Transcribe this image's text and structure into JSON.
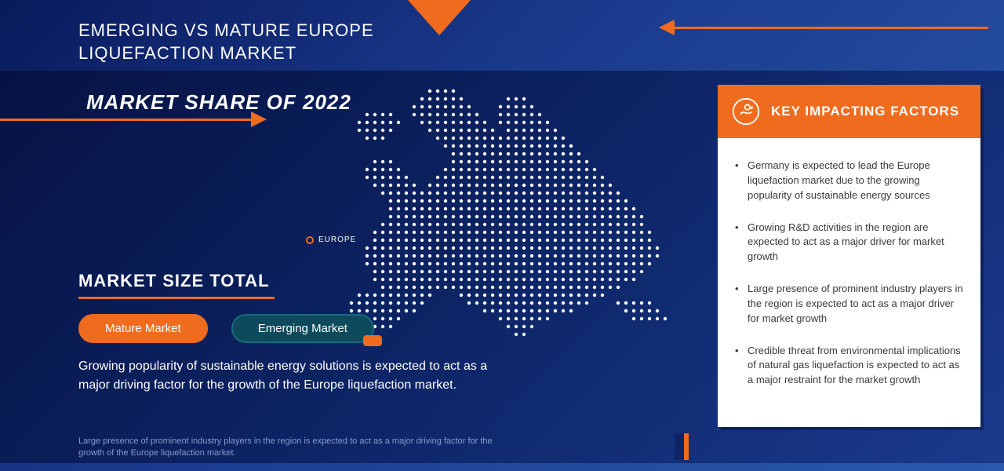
{
  "header": {
    "line1": "EMERGING VS MATURE EUROPE",
    "line2": "LIQUEFACTION MARKET"
  },
  "marketShareTitle": "MARKET SHARE OF 2022",
  "europeLabel": "EUROPE",
  "marketSizeTitle": "MARKET SIZE TOTAL",
  "pills": {
    "mature": "Mature Market",
    "emerging": "Emerging Market"
  },
  "bodyText": "Growing popularity of  sustainable energy solutions is expected to act as a major driving factor for the growth of the Europe liquefaction market.",
  "footerText": "Large presence of prominent industry players in the region is expected to act as a major driving factor for the growth of the Europe liquefaction market.",
  "panel": {
    "title": "KEY IMPACTING FACTORS",
    "factors": [
      "Germany is expected to lead the Europe liquefaction market due to the growing popularity of sustainable energy sources",
      "Growing R&D activities in the region are expected to act as a major driver for market growth",
      "Large presence of prominent industry players in the region is expected to act as a major driver for market growth",
      "Credible threat from environmental implications of natural gas liquefaction is expected to act as a major restraint for the market growth"
    ]
  },
  "colors": {
    "accent": "#ef6c1f",
    "bgDark": "#061243",
    "bgMid": "#1a3a8c",
    "white": "#ffffff",
    "teal": "#0d4a5c",
    "muted": "#8a9acc"
  },
  "map": {
    "dotColor": "#ffffff",
    "dotRadius": 2.2,
    "spacing": 10
  }
}
